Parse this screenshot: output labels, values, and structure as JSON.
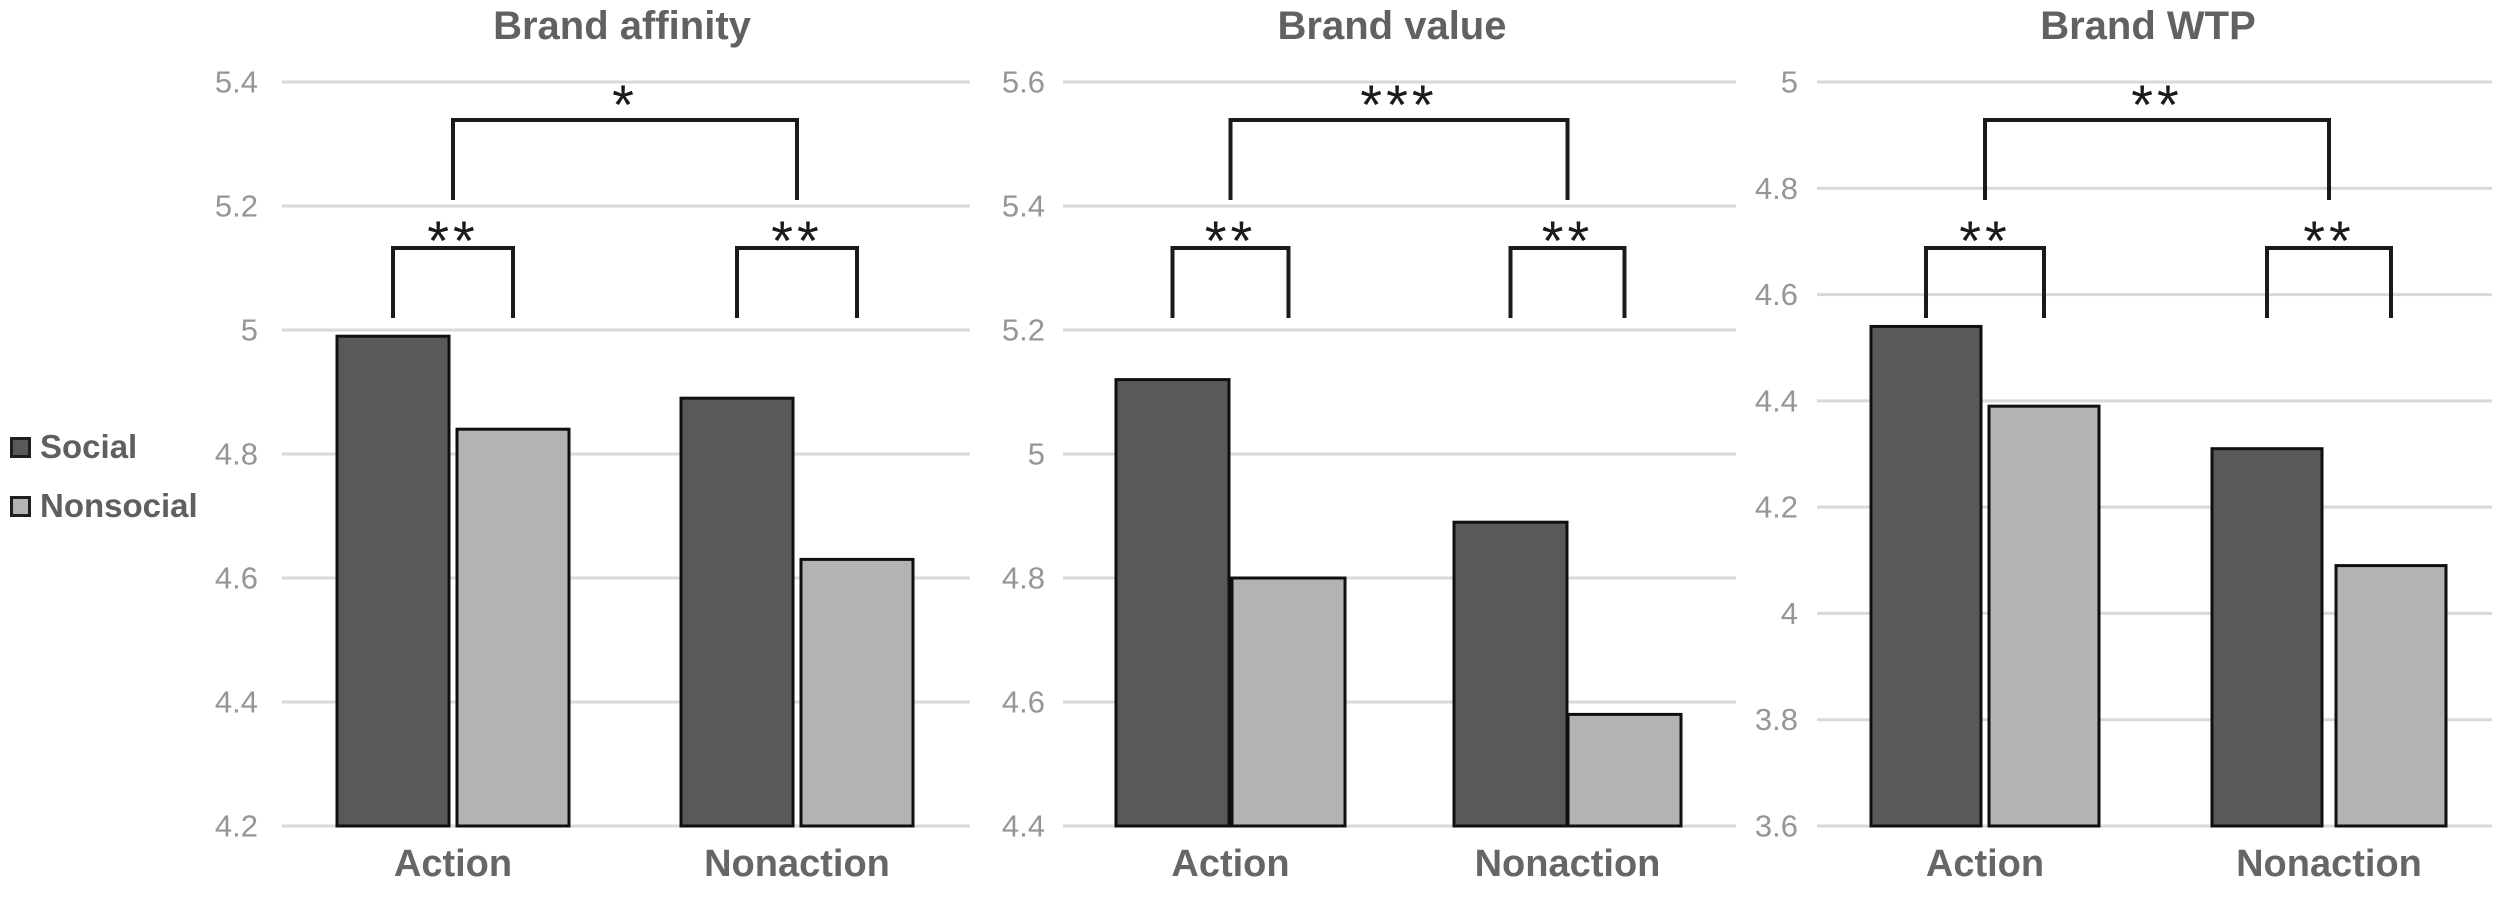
{
  "legend": {
    "items": [
      {
        "label": "Social",
        "color": "#595959"
      },
      {
        "label": "Nonsocial",
        "color": "#b3b3b3"
      }
    ]
  },
  "colors": {
    "grid": "#d9d9d9",
    "bar_outline": "#0f0f0f",
    "tick_label": "#969696",
    "category_label": "#666666",
    "title": "#616161",
    "significance": "#1a1a1a"
  },
  "chart_data": {
    "type": "bar",
    "categories": [
      "Action",
      "Nonaction"
    ],
    "series_names": [
      "Social",
      "Nonsocial"
    ],
    "grid": true,
    "legend_position": "left",
    "charts": [
      {
        "title": "Brand affinity",
        "ylim": [
          4.2,
          5.4
        ],
        "ytick_step": 0.2,
        "series": [
          {
            "name": "Social",
            "values": [
              4.99,
              4.89
            ]
          },
          {
            "name": "Nonsocial",
            "values": [
              4.84,
              4.63
            ]
          }
        ],
        "significance": {
          "pairs": [
            "**",
            "**"
          ],
          "between": "*"
        }
      },
      {
        "title": "Brand value",
        "ylim": [
          4.4,
          5.6
        ],
        "ytick_step": 0.2,
        "series": [
          {
            "name": "Social",
            "values": [
              5.12,
              4.89
            ]
          },
          {
            "name": "Nonsocial",
            "values": [
              4.8,
              4.58
            ]
          }
        ],
        "significance": {
          "pairs": [
            "**",
            "**"
          ],
          "between": "***"
        }
      },
      {
        "title": "Brand WTP",
        "ylim": [
          3.6,
          5.0
        ],
        "ytick_step": 0.2,
        "series": [
          {
            "name": "Social",
            "values": [
              4.54,
              4.31
            ]
          },
          {
            "name": "Nonsocial",
            "values": [
              4.39,
              4.09
            ]
          }
        ],
        "significance": {
          "pairs": [
            "**",
            "**"
          ],
          "between": "**"
        }
      }
    ]
  }
}
